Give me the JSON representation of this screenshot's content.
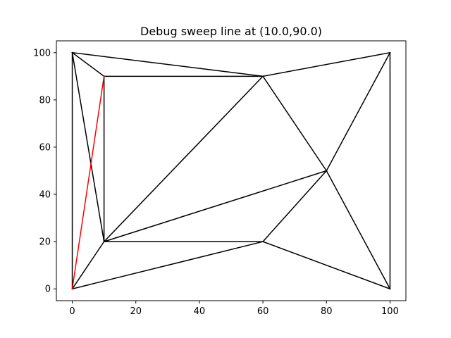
{
  "chart_data": {
    "type": "line",
    "title": "Debug sweep line at (10.0,90.0)",
    "xlabel": "",
    "ylabel": "",
    "xlim": [
      -5,
      105
    ],
    "ylim": [
      -5,
      105
    ],
    "x_ticks": [
      0,
      20,
      40,
      60,
      80,
      100
    ],
    "y_ticks": [
      0,
      20,
      40,
      60,
      80,
      100
    ],
    "grid": false,
    "series": [
      {
        "color": "#000000",
        "segments": [
          [
            [
              0,
              0
            ],
            [
              0,
              100
            ]
          ],
          [
            [
              0,
              100
            ],
            [
              10,
              90
            ]
          ],
          [
            [
              0,
              100
            ],
            [
              60,
              90
            ]
          ],
          [
            [
              0,
              100
            ],
            [
              10,
              20
            ]
          ],
          [
            [
              0,
              0
            ],
            [
              10,
              20
            ]
          ],
          [
            [
              0,
              0
            ],
            [
              60,
              20
            ]
          ],
          [
            [
              10,
              90
            ],
            [
              60,
              90
            ]
          ],
          [
            [
              10,
              90
            ],
            [
              10,
              20
            ]
          ],
          [
            [
              10,
              20
            ],
            [
              60,
              90
            ]
          ],
          [
            [
              10,
              20
            ],
            [
              80,
              50
            ]
          ],
          [
            [
              10,
              20
            ],
            [
              60,
              20
            ]
          ],
          [
            [
              60,
              20
            ],
            [
              80,
              50
            ]
          ],
          [
            [
              60,
              20
            ],
            [
              100,
              0
            ]
          ],
          [
            [
              60,
              90
            ],
            [
              80,
              50
            ]
          ],
          [
            [
              60,
              90
            ],
            [
              100,
              100
            ]
          ],
          [
            [
              80,
              50
            ],
            [
              100,
              100
            ]
          ],
          [
            [
              80,
              50
            ],
            [
              100,
              0
            ]
          ],
          [
            [
              100,
              0
            ],
            [
              100,
              100
            ]
          ]
        ]
      },
      {
        "color": "#ff0000",
        "segments": [
          [
            [
              0,
              0
            ],
            [
              10,
              90
            ]
          ]
        ]
      }
    ]
  }
}
